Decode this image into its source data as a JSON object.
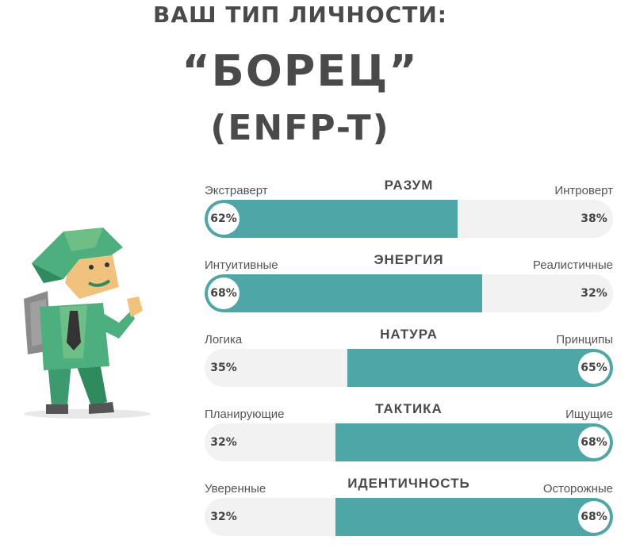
{
  "header": {
    "line1": "ВАШ ТИП ЛИЧНОСТИ:",
    "line2": "“БОРЕЦ”",
    "line3": "(ENFP-T)"
  },
  "colors": {
    "accent": "#4ea6a6",
    "track": "#f2f2f2",
    "text": "#4a4a4a"
  },
  "illustration": "campaigner-character-icon",
  "traits": [
    {
      "title": "РАЗУМ",
      "left_label": "Экстраверт",
      "right_label": "Интроверт",
      "left_pct": "62%",
      "right_pct": "38%",
      "dominant": "left",
      "value": 62
    },
    {
      "title": "ЭНЕРГИЯ",
      "left_label": "Интуитивные",
      "right_label": "Реалистичные",
      "left_pct": "68%",
      "right_pct": "32%",
      "dominant": "left",
      "value": 68
    },
    {
      "title": "НАТУРА",
      "left_label": "Логика",
      "right_label": "Принципы",
      "left_pct": "35%",
      "right_pct": "65%",
      "dominant": "right",
      "value": 65
    },
    {
      "title": "ТАКТИКА",
      "left_label": "Планирующие",
      "right_label": "Ищущие",
      "left_pct": "32%",
      "right_pct": "68%",
      "dominant": "right",
      "value": 68
    },
    {
      "title": "ИДЕНТИЧНОСТЬ",
      "left_label": "Уверенные",
      "right_label": "Осторожные",
      "left_pct": "32%",
      "right_pct": "68%",
      "dominant": "right",
      "value": 68
    }
  ]
}
